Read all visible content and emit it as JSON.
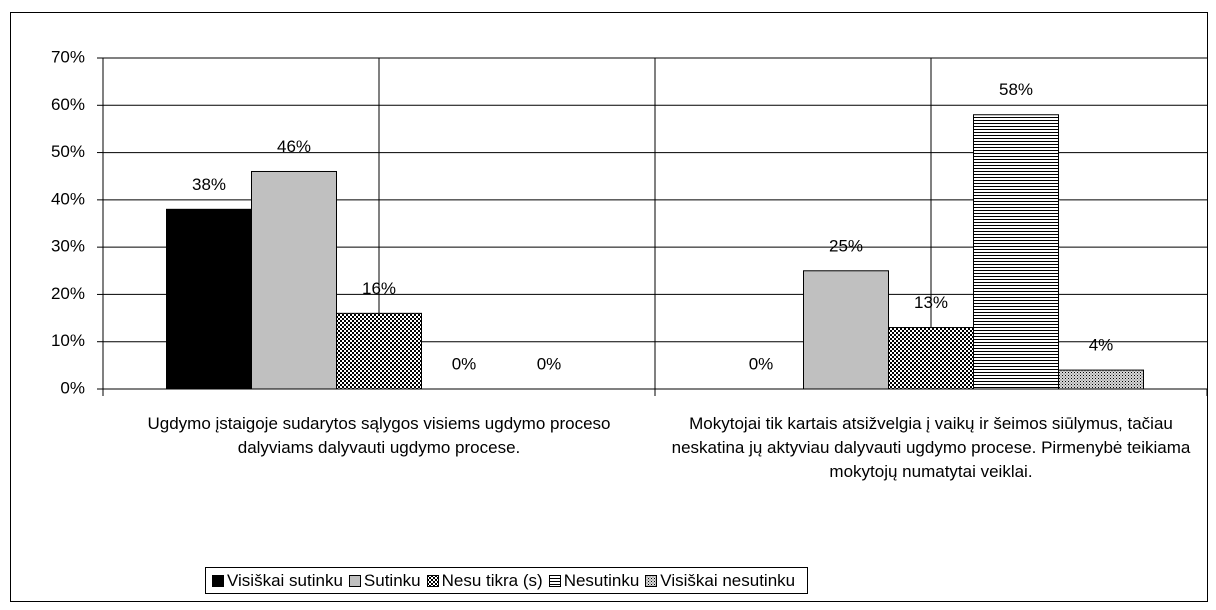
{
  "chart_data": {
    "type": "bar",
    "categories": [
      "Ugdymo įstaigoje sudarytos sąlygos visiems ugdymo proceso dalyviams dalyvauti ugdymo procese.",
      "Mokytojai tik kartais atsižvelgia į vaikų ir šeimos siūlymus, tačiau neskatina jų aktyviau dalyvauti ugdymo procese. Pirmenybė teikiama mokytojų numatytai veiklai."
    ],
    "series": [
      {
        "name": "Visiškai sutinku",
        "color": "#000000",
        "pattern": "solid",
        "values": [
          38,
          0
        ],
        "value_labels": [
          "38%",
          "0%"
        ]
      },
      {
        "name": "Sutinku",
        "color": "#c0c0c0",
        "pattern": "solid",
        "values": [
          46,
          25
        ],
        "value_labels": [
          "46%",
          "25%"
        ]
      },
      {
        "name": "Nesu tikra (s)",
        "color": "#000000",
        "pattern": "checker",
        "values": [
          16,
          13
        ],
        "value_labels": [
          "16%",
          "13%"
        ]
      },
      {
        "name": "Nesutinku",
        "color": "#000000",
        "pattern": "hlines",
        "values": [
          0,
          58
        ],
        "value_labels": [
          "0%",
          "58%"
        ]
      },
      {
        "name": "Visiškai nesutinku",
        "color": "#000000",
        "pattern": "dots",
        "values": [
          0,
          4
        ],
        "value_labels": [
          "0%",
          "4%"
        ]
      }
    ],
    "ylim": [
      0,
      70
    ],
    "yticks": [
      {
        "value": 0,
        "label": "0%"
      },
      {
        "value": 10,
        "label": "10%"
      },
      {
        "value": 20,
        "label": "20%"
      },
      {
        "value": 30,
        "label": "30%"
      },
      {
        "value": 40,
        "label": "40%"
      },
      {
        "value": 50,
        "label": "50%"
      },
      {
        "value": 60,
        "label": "60%"
      },
      {
        "value": 70,
        "label": "70%"
      }
    ],
    "grid": true,
    "legend": "bottom"
  }
}
